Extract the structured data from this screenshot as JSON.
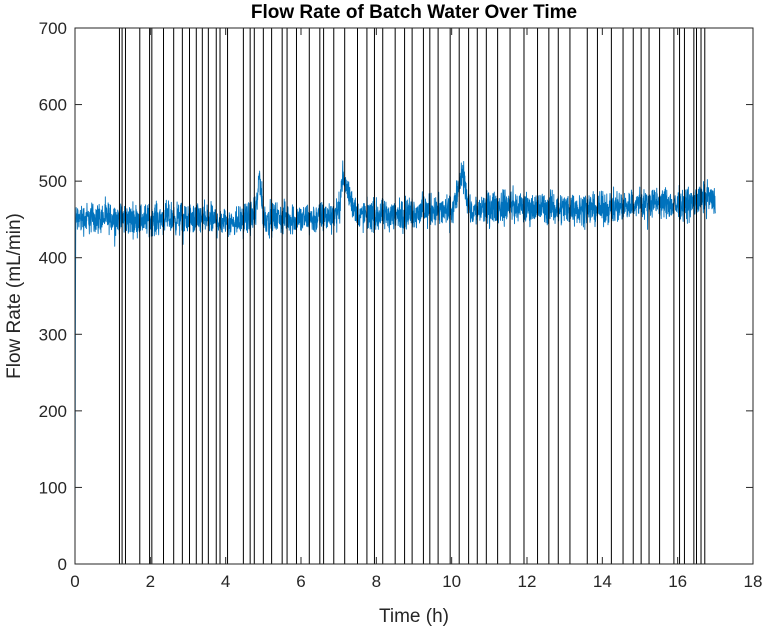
{
  "chart_data": {
    "type": "line",
    "title": "Flow Rate of Batch Water Over Time",
    "xlabel": "Time (h)",
    "ylabel": "Flow Rate (mL/min)",
    "xlim": [
      0,
      18
    ],
    "ylim": [
      0,
      700
    ],
    "xticks": [
      0,
      2,
      4,
      6,
      8,
      10,
      12,
      14,
      16,
      18
    ],
    "yticks": [
      0,
      100,
      200,
      300,
      400,
      500,
      600,
      700
    ],
    "grid": false,
    "legend": "none",
    "series": [
      {
        "color": "#0072bd",
        "noise_band": 30,
        "x": [
          0,
          0.01,
          0.02,
          0.5,
          1.0,
          1.5,
          2.0,
          2.5,
          3.0,
          3.5,
          4.0,
          4.5,
          4.8,
          4.9,
          5.0,
          5.5,
          6.0,
          6.5,
          7.0,
          7.1,
          7.5,
          8.0,
          8.5,
          9.0,
          9.5,
          10.0,
          10.3,
          10.5,
          11.0,
          11.5,
          12.0,
          12.5,
          13.0,
          13.5,
          14.0,
          14.5,
          15.0,
          15.5,
          16.0,
          16.5,
          16.8,
          17.0
        ],
        "y": [
          0,
          300,
          450,
          452,
          452,
          450,
          450,
          452,
          450,
          450,
          447,
          450,
          455,
          510,
          452,
          452,
          450,
          452,
          458,
          505,
          455,
          455,
          455,
          460,
          462,
          460,
          508,
          460,
          465,
          468,
          465,
          465,
          465,
          465,
          463,
          468,
          470,
          472,
          468,
          472,
          480,
          470
        ]
      }
    ],
    "vertical_lines": [
      1.18,
      1.25,
      1.34,
      1.72,
      1.98,
      2.04,
      2.35,
      2.62,
      2.85,
      3.04,
      3.22,
      3.38,
      3.54,
      3.75,
      3.85,
      4.05,
      4.47,
      4.65,
      4.76,
      5.0,
      5.22,
      5.5,
      5.63,
      5.88,
      6.22,
      6.5,
      6.6,
      6.87,
      7.16,
      7.5,
      7.75,
      7.95,
      8.17,
      8.5,
      8.75,
      8.95,
      9.25,
      9.42,
      9.64,
      9.96,
      10.2,
      10.45,
      10.68,
      10.92,
      11.22,
      11.55,
      11.92,
      12.28,
      12.58,
      12.83,
      13.14,
      13.6,
      13.87,
      14.24,
      14.55,
      14.82,
      15.03,
      15.24,
      15.52,
      15.9,
      16.05,
      16.18,
      16.43,
      16.5,
      16.62,
      16.72
    ]
  }
}
